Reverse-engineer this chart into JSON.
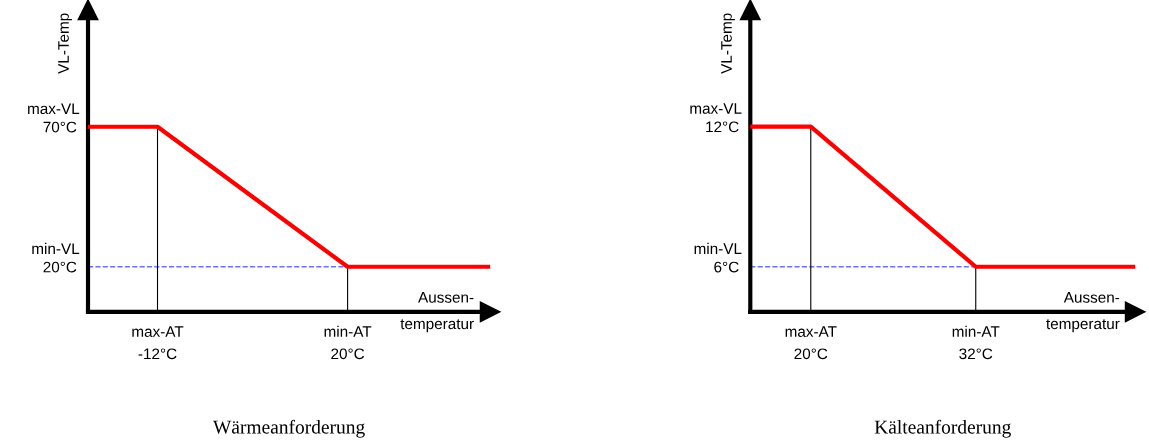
{
  "chart_data": [
    {
      "type": "line",
      "title": "Wärmeanforderung",
      "xlabel": "Aussen-\ntemperatur",
      "ylabel": "VL-Temp",
      "series": [
        {
          "color": "#ff0000",
          "x": [
            -23.7,
            -12,
            20,
            44
          ],
          "values": [
            70,
            70,
            20,
            20
          ]
        }
      ],
      "xlim": [
        -23.7,
        44
      ],
      "ylim": [
        3.9,
        111.8
      ],
      "xticks": [
        {
          "value": -12,
          "label": "-12°C"
        },
        {
          "value": 20,
          "label": "20°C"
        }
      ],
      "yticks": [
        {
          "value": 70,
          "label": "70°C"
        },
        {
          "value": 20,
          "label": "20°C"
        }
      ],
      "annotations": [
        "max-AT",
        "min-AT",
        "max-VL",
        "min-VL"
      ],
      "ref_lines": [
        {
          "axis": "y",
          "value": 20,
          "color": "#7070ff",
          "line_style": "dashed"
        },
        {
          "axis": "x",
          "value": -12,
          "color": "#000000",
          "line_style": "solid"
        },
        {
          "axis": "x",
          "value": 20,
          "color": "#000000",
          "line_style": "solid"
        }
      ],
      "grid": false,
      "legend": false,
      "marker": "none",
      "line_style": "solid"
    },
    {
      "type": "line",
      "title": "Kälteanforderung",
      "xlabel": "Aussen-\ntemperatur",
      "ylabel": "VL-Temp",
      "series": [
        {
          "color": "#ff0000",
          "x": [
            15.6,
            20,
            32,
            43.6
          ],
          "values": [
            12,
            12,
            6,
            6
          ]
        }
      ],
      "xlim": [
        15.6,
        43.6
      ],
      "ylim": [
        4.07,
        17.0
      ],
      "xticks": [
        {
          "value": 20,
          "label": "20°C"
        },
        {
          "value": 32,
          "label": "32°C"
        }
      ],
      "yticks": [
        {
          "value": 12,
          "label": "12°C"
        },
        {
          "value": 6,
          "label": "6°C"
        }
      ],
      "annotations": [
        "max-AT",
        "min-AT",
        "max-VL",
        "min-VL"
      ],
      "ref_lines": [
        {
          "axis": "y",
          "value": 6,
          "color": "#7070ff",
          "line_style": "dashed"
        },
        {
          "axis": "x",
          "value": 20,
          "color": "#000000",
          "line_style": "solid"
        },
        {
          "axis": "x",
          "value": 32,
          "color": "#000000",
          "line_style": "solid"
        }
      ],
      "grid": false,
      "legend": false,
      "marker": "none",
      "line_style": "solid"
    }
  ]
}
